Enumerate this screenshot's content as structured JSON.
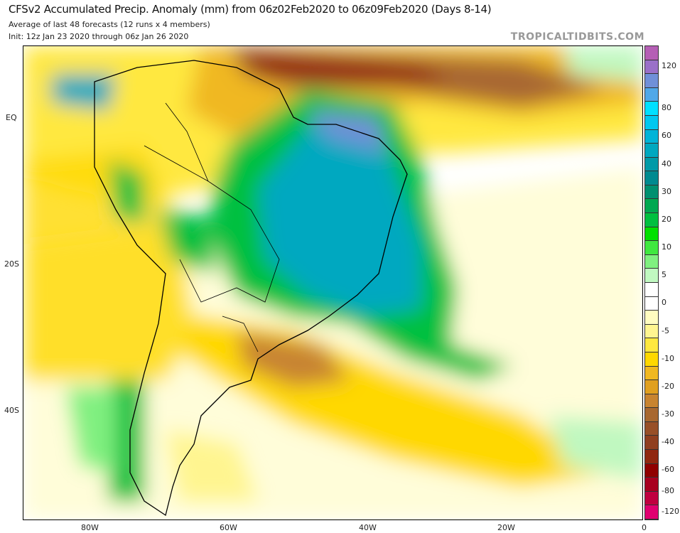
{
  "header": {
    "title": "CFSv2 Accumulated Precip. Anomaly (mm) from 06z02Feb2020 to 06z09Feb2020 (Days 8-14)",
    "subtitle": "Average of last 48 forecasts (12 runs x 4 members)",
    "init": "Init: 12z Jan 23 2020 through 06z Jan 26 2020",
    "brand": "TROPICALTIDBITS.COM"
  },
  "axes": {
    "lat_labels": [
      "EQ",
      "20S",
      "40S"
    ],
    "lon_labels": [
      "80W",
      "60W",
      "40W",
      "20W",
      "0"
    ]
  },
  "colorbar": {
    "unit": "mm",
    "labels": [
      "120",
      "80",
      "60",
      "40",
      "30",
      "20",
      "10",
      "5",
      "0",
      "-5",
      "-10",
      "-20",
      "-30",
      "-40",
      "-60",
      "-80",
      "-120"
    ],
    "colors": [
      "#b55fb5",
      "#9a70c8",
      "#7090d8",
      "#50a8e8",
      "#00e0ff",
      "#00c8f0",
      "#00b4d8",
      "#00a8c0",
      "#009aa8",
      "#008a90",
      "#009070",
      "#00a850",
      "#00c040",
      "#00e000",
      "#40e840",
      "#80f080",
      "#c0f8c0",
      "#ffffff",
      "#ffffff",
      "#fffcc0",
      "#fff590",
      "#ffe840",
      "#ffd800",
      "#f0b820",
      "#e0a020",
      "#c88430",
      "#a86830",
      "#985028",
      "#904020",
      "#902810",
      "#900000",
      "#a80020",
      "#c00040",
      "#e00070"
    ]
  }
}
